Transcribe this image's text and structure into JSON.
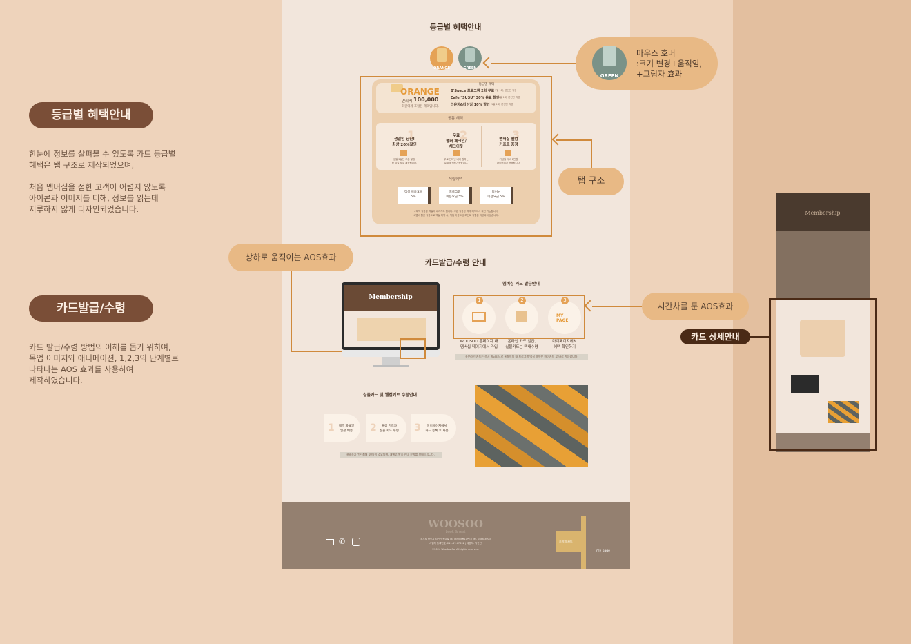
{
  "left": {
    "section1": {
      "title": "등급별 혜택안내",
      "desc": "한눈에 정보를 살펴볼 수 있도록 카드 등급별\n혜택은 탭 구조로 제작되었으며,\n\n처음 멤버십을 접한 고객이 어렵지 않도록\n아이콘과 이미지를 더해, 정보를 읽는데\n지루하지 않게 디자인되었습니다."
    },
    "section2": {
      "title": "카드발급/수령",
      "desc": "카드 발급/수령 방법의 이해를 돕기 위하여,\n목업 이미지와 애니메이션, 1,2,3의 단계별로\n나타나는 AOS 효과를 사용하여\n제작하였습니다."
    }
  },
  "callouts": {
    "hover": "마우스 호버\n:크기 변경+움직임,\n+그림자 효과",
    "tab": "탭 구조",
    "aos_updown": "상하로 움직이는 AOS효과",
    "aos_delay": "시간차를 둔 AOS효과",
    "card_detail": "카드 상세안내"
  },
  "mock": {
    "benefit_title": "등급별 혜택안내",
    "tabs": [
      "ORANGE",
      "GREEN"
    ],
    "hover_tab": "GREEN",
    "grade": {
      "name": "ORANGE",
      "label": "연회비",
      "fee": "100,000",
      "note": "회원에게 포함된 혜택입니다.",
      "benefits_title": "등급별 혜택",
      "benefits": [
        "B'Space 프로그램 2회 무료",
        "Cafe \"SUSU\" 30% 음료 할인",
        "라운지&다이닝 10% 할인"
      ],
      "benefit_notes": [
        "1일 1회, 본인만 적용",
        "1일 1회, 본인만 적용",
        "1일 1회, 본인만 적용"
      ]
    },
    "common_title": "공통 혜택",
    "common": [
      {
        "num": "1",
        "title": "생일인 당신!\n최상 20%할인",
        "note": "생일 2일전 쿠폰 발행,\n한 휴일 모두 제공됩니다."
      },
      {
        "num": "2",
        "title": "무료\n멤버 체크인/\n체크아웃",
        "note": "무료 인터넷 내가 원하는\n날짜에 적용가능합니다."
      },
      {
        "num": "3",
        "title": "멤버십 웰컴\n기프트 증정",
        "note": "기념일 서비 2만원\n다이어리가 증정됩니다."
      }
    ],
    "extra_title": "적립혜택",
    "extra": [
      "객실 이용요금\n5%",
      "프로그램\n이용요금 5%",
      "다이닝\n이용요금 5%"
    ],
    "footnotes": [
      "※혜택 적용은 객실에 내려가야 합니다. 쿠폰 적용은 객석 예약에서 확인 가능합니다.",
      "※멤버 월간 적용으로 객실 예약 시, 적립 이용요금 포인트 적립은 적용되지 않습니다."
    ],
    "issue_title": "카드발급/수령 안내",
    "monitor_label": "Membership",
    "issue_sub": "멤버십 카드 발급안내",
    "steps": [
      {
        "num": "1",
        "label": "WOOSOO 홈페이지 내\n멤버십 페이지에서 가입"
      },
      {
        "num": "2",
        "label": "온라인 카드 발급,\n실물카드는 택배수령"
      },
      {
        "num": "3",
        "label": "마이페이지에서\n혜택 확인하기"
      }
    ],
    "mypage_icon": "MY\nPAGE",
    "issue_note": "※온라인 카드는 즉시 발급되므로 홈페이지 내 프로그램/객실 예약은 마이카드 로 바로 가능합니다.",
    "receive_title": "실물카드 및 웰컴키트 수령안내",
    "receive_steps": [
      {
        "num": "1",
        "label": "매주 화요일\n일괄 배송"
      },
      {
        "num": "2",
        "label": "웰컴 키트와\n실물 카드 수령"
      },
      {
        "num": "3",
        "label": "마이페이지에서\n카드 등록 후 사용"
      }
    ],
    "receive_note": "※배송기간은 최대 10일이 소요되며, 개별로 발송 안내 문자를 보내드립니다.",
    "footer": {
      "logo": "WOOSOO",
      "logo_sub": "book & rest",
      "lines": [
        "경기도 용인시 처인 백옥대로 (4) (삼성영동11번) | Tel. 1588-3003",
        "사업자 등록번호. 211-87-67892 | 대표자: 박찬년",
        "©2024 WooSoo Co. All rights reserved."
      ],
      "card_label": "조이의 카드",
      "mypage_label": "my page"
    }
  },
  "thumb": {
    "hero": "Membership"
  }
}
